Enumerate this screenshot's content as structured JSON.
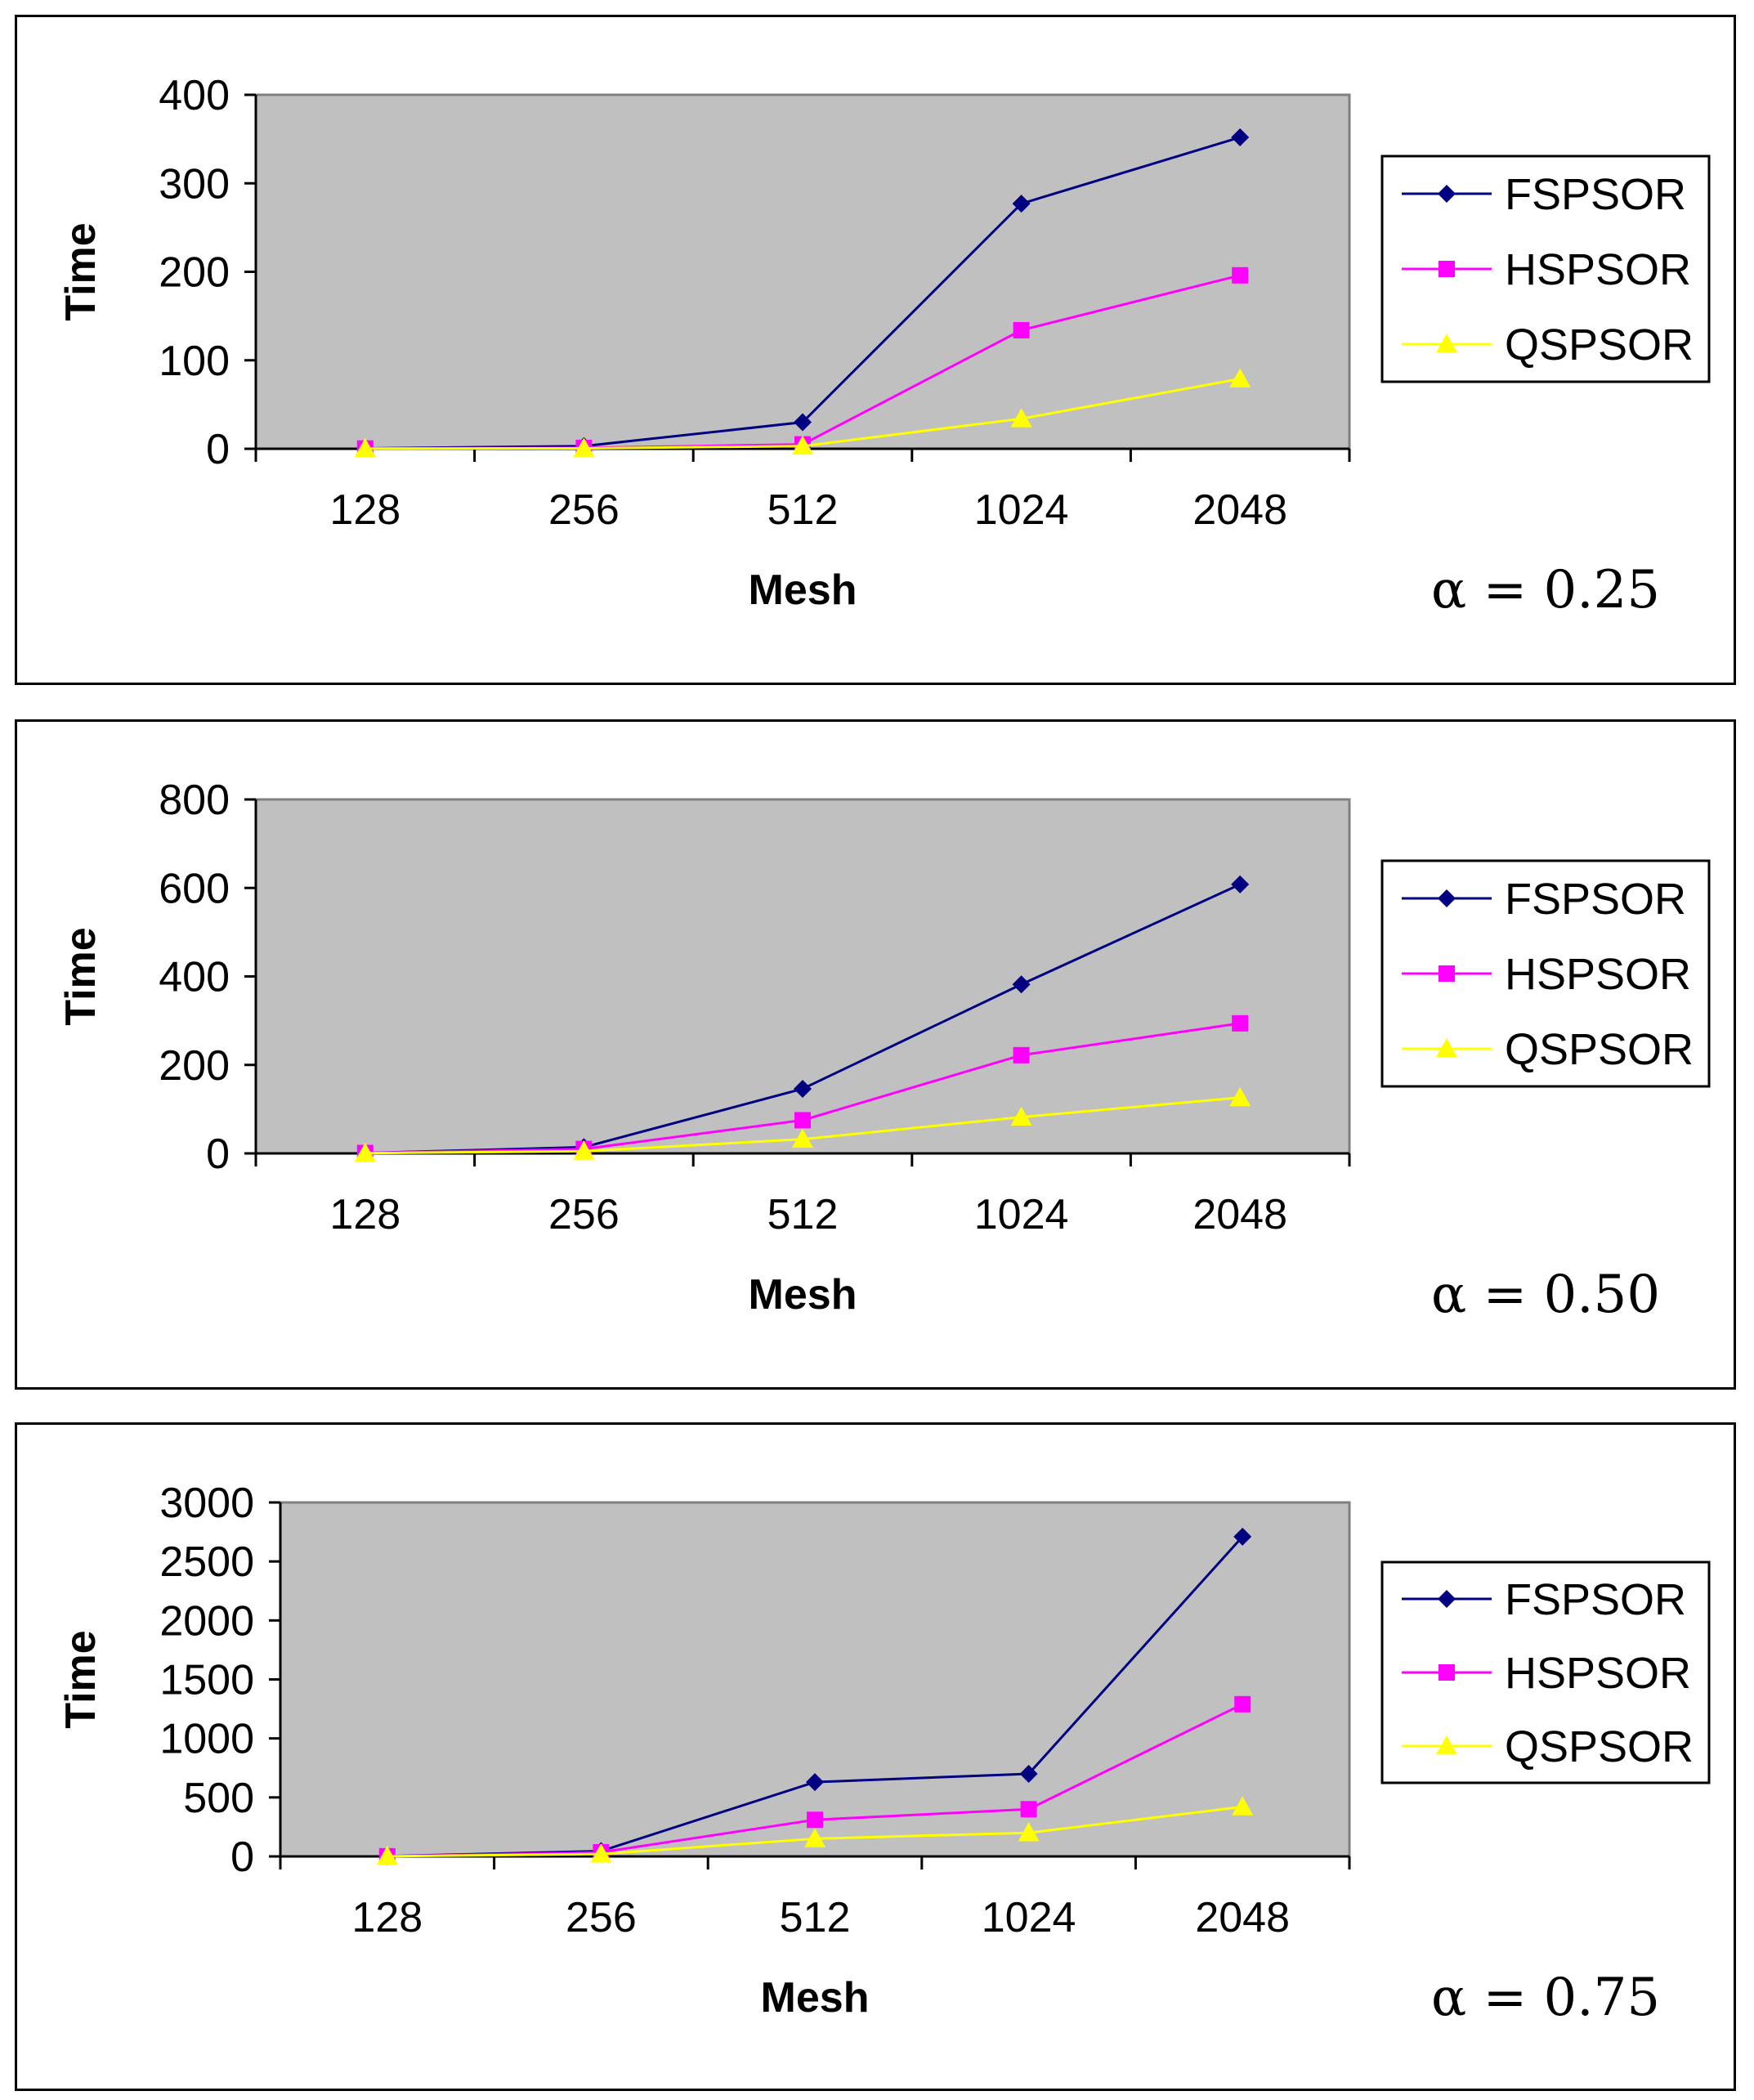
{
  "colors": {
    "plot_bg": "#c0c0c0",
    "FSPSOR": "#000080",
    "HSPSOR": "#ff00ff",
    "QSPSOR": "#ffff00"
  },
  "chart_data": [
    {
      "type": "line",
      "title": "",
      "annotation": "α = 0.25",
      "xlabel": "Mesh",
      "ylabel": "Time",
      "categories": [
        "128",
        "256",
        "512",
        "1024",
        "2048"
      ],
      "ylim": [
        0,
        400
      ],
      "yticks": [
        "0",
        "100",
        "200",
        "300",
        "400"
      ],
      "grid": false,
      "legend_position": "right",
      "series": [
        {
          "name": "FSPSOR",
          "marker": "diamond",
          "values": [
            0.5,
            3,
            30,
            277,
            352
          ]
        },
        {
          "name": "HSPSOR",
          "marker": "square",
          "values": [
            0.3,
            1,
            5,
            134,
            196
          ]
        },
        {
          "name": "QSPSOR",
          "marker": "triangle",
          "values": [
            0.2,
            0.5,
            3,
            34,
            79
          ]
        }
      ]
    },
    {
      "type": "line",
      "title": "",
      "annotation": "α = 0.50",
      "xlabel": "Mesh",
      "ylabel": "Time",
      "categories": [
        "128",
        "256",
        "512",
        "1024",
        "2048"
      ],
      "ylim": [
        0,
        800
      ],
      "yticks": [
        "0",
        "200",
        "400",
        "600",
        "800"
      ],
      "grid": false,
      "legend_position": "right",
      "series": [
        {
          "name": "FSPSOR",
          "marker": "diamond",
          "values": [
            1,
            14,
            146,
            382,
            608
          ]
        },
        {
          "name": "HSPSOR",
          "marker": "square",
          "values": [
            1,
            10,
            75,
            222,
            294
          ]
        },
        {
          "name": "QSPSOR",
          "marker": "triangle",
          "values": [
            0.5,
            5,
            32,
            82,
            126
          ]
        }
      ]
    },
    {
      "type": "line",
      "title": "",
      "annotation": "α = 0.75",
      "xlabel": "Mesh",
      "ylabel": "Time",
      "categories": [
        "128",
        "256",
        "512",
        "1024",
        "2048"
      ],
      "ylim": [
        0,
        3000
      ],
      "yticks": [
        "0",
        "500",
        "1000",
        "1500",
        "2000",
        "2500",
        "3000"
      ],
      "grid": false,
      "legend_position": "right",
      "series": [
        {
          "name": "FSPSOR",
          "marker": "diamond",
          "values": [
            2,
            45,
            630,
            700,
            2710
          ]
        },
        {
          "name": "HSPSOR",
          "marker": "square",
          "values": [
            1,
            35,
            310,
            400,
            1290
          ]
        },
        {
          "name": "QSPSOR",
          "marker": "triangle",
          "values": [
            1,
            20,
            150,
            200,
            420
          ]
        }
      ]
    }
  ]
}
